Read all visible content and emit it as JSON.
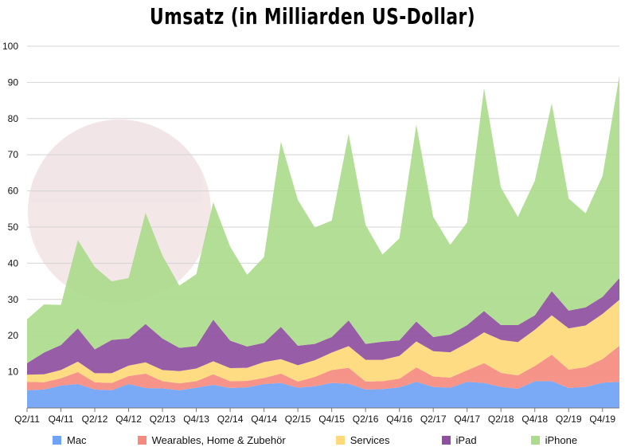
{
  "chart_data": {
    "type": "area",
    "stacked": true,
    "title": "Umsatz (in Milliarden US-Dollar)",
    "xlabel": "",
    "ylabel": "",
    "ylim": [
      0,
      100
    ],
    "yticks": [
      10,
      20,
      30,
      40,
      50,
      60,
      70,
      80,
      90,
      100
    ],
    "grid": true,
    "legend_position": "bottom",
    "x_tick_labels": [
      "Q2/11",
      "Q4/11",
      "Q2/12",
      "Q4/12",
      "Q2/13",
      "Q4/13",
      "Q2/14",
      "Q4/14",
      "Q2/15",
      "Q4/15",
      "Q2/16",
      "Q4/16",
      "Q2/17",
      "Q4/17",
      "Q2/18",
      "Q4/18",
      "Q2/19",
      "Q4/19"
    ],
    "categories": [
      "Q2/11",
      "Q3/11",
      "Q4/11",
      "Q1/12",
      "Q2/12",
      "Q3/12",
      "Q4/12",
      "Q1/13",
      "Q2/13",
      "Q3/13",
      "Q4/13",
      "Q1/14",
      "Q2/14",
      "Q3/14",
      "Q4/14",
      "Q1/15",
      "Q2/15",
      "Q3/15",
      "Q4/15",
      "Q1/16",
      "Q2/16",
      "Q3/16",
      "Q4/16",
      "Q1/17",
      "Q2/17",
      "Q3/17",
      "Q4/17",
      "Q1/18",
      "Q2/18",
      "Q3/18",
      "Q4/18",
      "Q1/19",
      "Q2/19",
      "Q3/19",
      "Q4/19",
      "Q1/20"
    ],
    "series": [
      {
        "name": "Mac",
        "color": "#6fa3f5",
        "values": [
          4.9,
          5.1,
          6.2,
          6.6,
          5.1,
          4.9,
          6.6,
          5.5,
          5.4,
          4.9,
          5.6,
          6.4,
          5.5,
          5.7,
          6.6,
          6.9,
          5.6,
          6.0,
          6.9,
          6.7,
          5.1,
          5.2,
          5.7,
          7.2,
          5.8,
          5.6,
          7.2,
          6.9,
          5.8,
          5.3,
          7.4,
          7.4,
          5.5,
          5.8,
          7.0,
          7.2
        ]
      },
      {
        "name": "Wearables, Home & Zubehör",
        "color": "#f58b7f",
        "values": [
          2.3,
          2.0,
          2.0,
          3.3,
          2.0,
          2.0,
          2.2,
          4.0,
          2.0,
          1.9,
          1.8,
          2.9,
          1.9,
          1.8,
          1.7,
          2.6,
          1.7,
          2.6,
          3.6,
          4.4,
          2.2,
          2.2,
          2.4,
          4.0,
          2.9,
          2.8,
          3.2,
          5.5,
          3.9,
          3.7,
          4.2,
          7.3,
          5.1,
          5.5,
          6.5,
          10.0
        ]
      },
      {
        "name": "Services",
        "color": "#fdd97a",
        "values": [
          2.0,
          2.2,
          2.3,
          2.9,
          2.5,
          2.7,
          2.9,
          3.1,
          3.1,
          3.4,
          3.5,
          3.6,
          3.6,
          3.6,
          4.4,
          4.0,
          4.5,
          4.6,
          4.8,
          6.0,
          6.0,
          5.9,
          6.3,
          7.2,
          7.0,
          7.0,
          7.5,
          8.5,
          9.1,
          9.2,
          10.0,
          10.9,
          11.4,
          11.5,
          12.5,
          12.7
        ]
      },
      {
        "name": "iPad",
        "color": "#8e4f9e",
        "values": [
          3.2,
          6.0,
          6.9,
          9.2,
          6.6,
          9.2,
          7.5,
          10.6,
          8.7,
          6.4,
          6.2,
          11.5,
          7.6,
          5.9,
          5.3,
          8.9,
          5.4,
          4.5,
          4.3,
          7.1,
          4.4,
          5.0,
          4.3,
          5.5,
          3.9,
          4.9,
          5.0,
          5.9,
          4.1,
          4.7,
          4.0,
          6.7,
          4.9,
          5.0,
          4.7,
          6.0
        ]
      },
      {
        "name": "iPhone",
        "color": "#addb8c",
        "values": [
          12.1,
          13.3,
          11.1,
          24.4,
          22.8,
          16.2,
          16.7,
          30.7,
          22.9,
          17.2,
          19.9,
          32.5,
          26.0,
          19.8,
          23.7,
          51.2,
          40.3,
          32.2,
          32.2,
          51.6,
          32.9,
          24.1,
          28.2,
          54.4,
          33.2,
          24.8,
          28.4,
          61.6,
          38.0,
          29.9,
          37.2,
          51.9,
          31.0,
          26.0,
          33.4,
          56.0
        ]
      }
    ]
  }
}
